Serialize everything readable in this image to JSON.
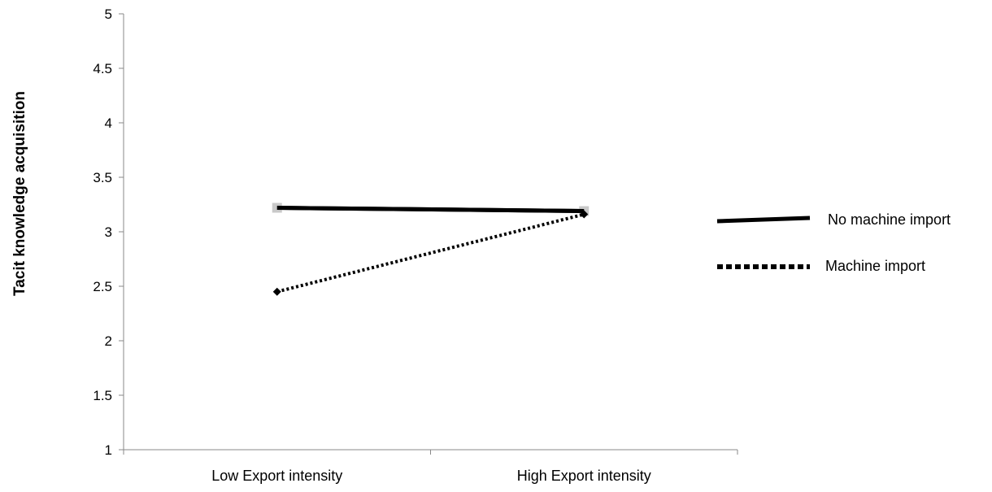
{
  "chart_data": {
    "type": "line",
    "categories": [
      "Low Export intensity",
      "High Export intensity"
    ],
    "series": [
      {
        "name": "No machine import",
        "values": [
          3.22,
          3.19
        ],
        "line_style": "solid",
        "color": "#000000",
        "marker": "square",
        "marker_color": "#bbbbbb"
      },
      {
        "name": "Machine import",
        "values": [
          2.45,
          3.16
        ],
        "line_style": "dotted",
        "color": "#000000",
        "marker": "diamond",
        "marker_color": "#000000"
      }
    ],
    "title": "",
    "xlabel": "",
    "ylabel": "Tacit knowledge acquisition",
    "ylim": [
      1,
      5
    ],
    "yticks": [
      "1",
      "1.5",
      "2",
      "2.5",
      "3",
      "3.5",
      "4",
      "4.5",
      "5"
    ],
    "grid": false,
    "legend_position": "right"
  }
}
